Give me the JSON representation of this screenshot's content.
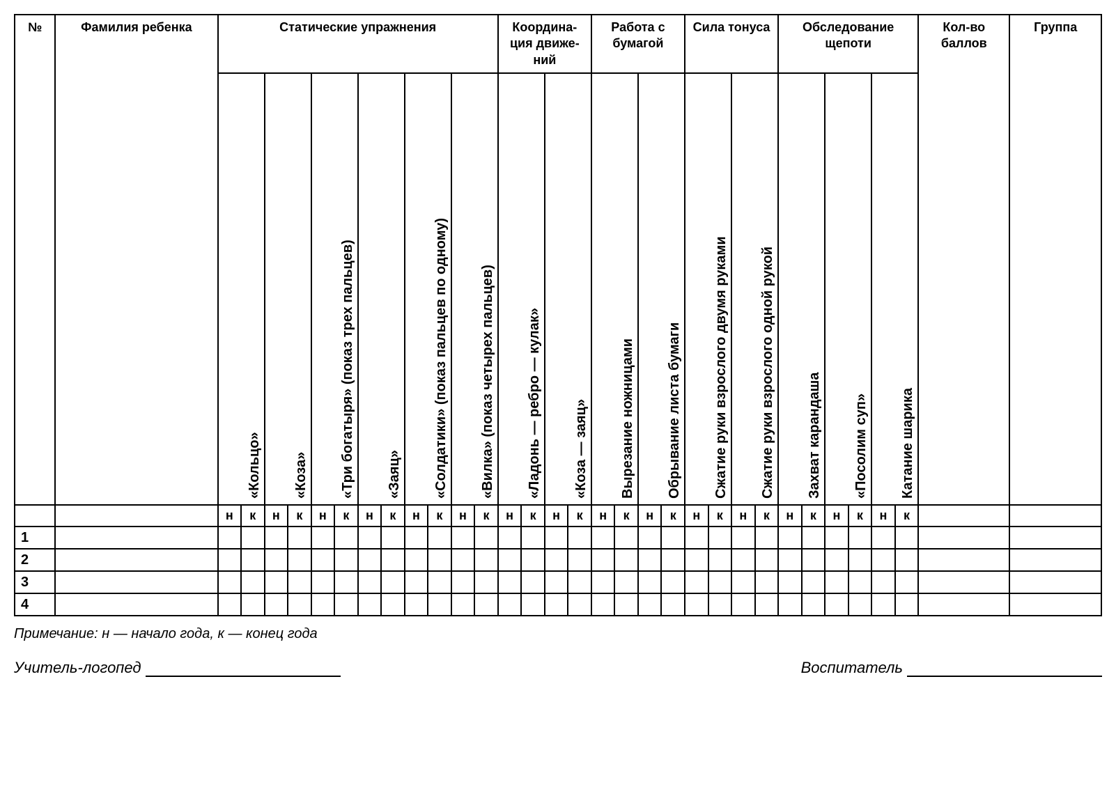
{
  "headers": {
    "num": "№",
    "child_name": "Фамилия ребенка",
    "static_ex": "Статические упражнения",
    "coordination": "Координа-ция движе-ний",
    "paper_work": "Работа с бумагой",
    "tonus": "Сила тонуса",
    "pinch": "Обследование щепоти",
    "score": "Кол-во баллов",
    "group": "Группа"
  },
  "exercises": {
    "e1": "«Кольцо»",
    "e2": "«Коза»",
    "e3": "«Три богатыря» (показ трех пальцев)",
    "e4": "«Заяц»",
    "e5": "«Солдатики» (показ пальцев по одному)",
    "e6": "«Вилка» (показ четырех пальцев)",
    "e7": "«Ладонь — ребро — кулак»",
    "e8": "«Коза — заяц»",
    "e9": "Вырезание ножницами",
    "e10": "Обрывание листа бумаги",
    "e11": "Сжатие руки взрослого двумя руками",
    "e12": "Сжатие руки взрослого одной рукой",
    "e13": "Захват карандаша",
    "e14": "«Посолим суп»",
    "e15": "Катание шарика"
  },
  "nk": {
    "n": "н",
    "k": "к"
  },
  "rows": {
    "r1": "1",
    "r2": "2",
    "r3": "3",
    "r4": "4"
  },
  "note": "Примечание: н — начало года, к — конец года",
  "signatures": {
    "teacher": "Учитель-логопед",
    "educator": "Воспитатель"
  }
}
